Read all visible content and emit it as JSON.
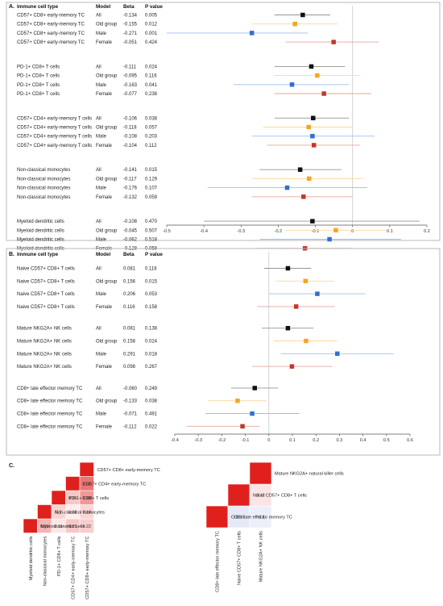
{
  "chart_data": [
    {
      "type": "forest",
      "panel": "A.",
      "headers": [
        "Immune cell type",
        "Model",
        "Beta",
        "P value"
      ],
      "xlim": [
        -0.5,
        0.2
      ],
      "ticks": [
        "-0.5",
        "-0.4",
        "-0.3",
        "-0.2",
        "-0.1",
        "0",
        "0.1",
        "0.2"
      ],
      "model_colors": {
        "All": "#111111",
        "Old group": "#f5a623",
        "Male": "#2f6fd6",
        "Female": "#c0392b"
      },
      "groups": [
        {
          "rows": [
            {
              "cell": "CD57+ CD8+ early-memory TC",
              "model": "All",
              "beta": "-0.134",
              "p": "0.005",
              "est": -0.134,
              "lo": -0.21,
              "hi": -0.06
            },
            {
              "cell": "CD57+ CD8+ early-memory TC",
              "model": "Old group",
              "beta": "-0.155",
              "p": "0.012",
              "est": -0.155,
              "lo": -0.27,
              "hi": -0.04
            },
            {
              "cell": "CD57+ CD8+ early-memory TC",
              "model": "Male",
              "beta": "-0.271",
              "p": "0.001",
              "est": -0.271,
              "lo": -0.5,
              "hi": -0.12
            },
            {
              "cell": "CD57+ CD8+ early-memory TC",
              "model": "Female",
              "beta": "-0.051",
              "p": "0.424",
              "est": -0.051,
              "lo": -0.18,
              "hi": 0.07
            }
          ]
        },
        {
          "rows": [
            {
              "cell": "PD-1+ CD8+ T cells",
              "model": "All",
              "beta": "-0.111",
              "p": "0.024",
              "est": -0.111,
              "lo": -0.21,
              "hi": -0.02
            },
            {
              "cell": "PD-1+ CD8+ T cells",
              "model": "Old group",
              "beta": "-0.095",
              "p": "0.116",
              "est": -0.095,
              "lo": -0.21,
              "hi": 0.02
            },
            {
              "cell": "PD-1+ CD8+ T cells",
              "model": "Male",
              "beta": "-0.163",
              "p": "0.041",
              "est": -0.163,
              "lo": -0.32,
              "hi": -0.01
            },
            {
              "cell": "PD-1+ CD8+ T cells",
              "model": "Female",
              "beta": "-0.077",
              "p": "0.238",
              "est": -0.077,
              "lo": -0.21,
              "hi": 0.05
            }
          ]
        },
        {
          "rows": [
            {
              "cell": "CD57+ CD4+ early-memory T cells",
              "model": "All",
              "beta": "-0.106",
              "p": "0.038",
              "est": -0.106,
              "lo": -0.21,
              "hi": -0.01
            },
            {
              "cell": "CD57+ CD4+ early-memory T cells",
              "model": "Old group",
              "beta": "-0.118",
              "p": "0.057",
              "est": -0.118,
              "lo": -0.24,
              "hi": 0.0
            },
            {
              "cell": "CD57+ CD4+ early-memory T cells",
              "model": "Male",
              "beta": "-0.108",
              "p": "0.203",
              "est": -0.108,
              "lo": -0.27,
              "hi": 0.06
            },
            {
              "cell": "CD57+ CD4+ early-memory T cells",
              "model": "Female",
              "beta": "-0.104",
              "p": "0.112",
              "est": -0.104,
              "lo": -0.23,
              "hi": 0.02
            }
          ]
        },
        {
          "rows": [
            {
              "cell": "Non-classical monocytes",
              "model": "All",
              "beta": "-0.141",
              "p": "0.015",
              "est": -0.141,
              "lo": -0.25,
              "hi": -0.03
            },
            {
              "cell": "Non-classical monocytes",
              "model": "Old group",
              "beta": "-0.117",
              "p": "0.129",
              "est": -0.117,
              "lo": -0.27,
              "hi": 0.03
            },
            {
              "cell": "Non-classical monocytes",
              "model": "Male",
              "beta": "-0.176",
              "p": "0.107",
              "est": -0.176,
              "lo": -0.39,
              "hi": 0.04
            },
            {
              "cell": "Non-classical monocytes",
              "model": "Female",
              "beta": "-0.132",
              "p": "0.059",
              "est": -0.132,
              "lo": -0.27,
              "hi": 0.0
            }
          ]
        },
        {
          "rows": [
            {
              "cell": "Myeloid dendritic cells",
              "model": "All",
              "beta": "-0.108",
              "p": "0.470",
              "est": -0.108,
              "lo": -0.4,
              "hi": 0.18
            },
            {
              "cell": "Myeloid dendritic cells",
              "model": "Old group",
              "beta": "-0.045",
              "p": "0.507",
              "est": -0.045,
              "lo": -0.18,
              "hi": 0.09
            },
            {
              "cell": "Myeloid dendritic cells",
              "model": "Male",
              "beta": "-0.062",
              "p": "0.518",
              "est": -0.062,
              "lo": -0.25,
              "hi": 0.13
            },
            {
              "cell": "Myeloid dendritic cells",
              "model": "Female",
              "beta": "-0.128",
              "p": "0.058",
              "est": -0.128,
              "lo": -0.26,
              "hi": 0.0
            }
          ]
        }
      ]
    },
    {
      "type": "forest",
      "panel": "B.",
      "headers": [
        "Immune cell type",
        "Model",
        "Beta",
        "P value"
      ],
      "xlim": [
        -0.4,
        0.6
      ],
      "ticks": [
        "-0.4",
        "-0.3",
        "-0.2",
        "-0.1",
        "0",
        "0.1",
        "0.2",
        "0.3",
        "0.4",
        "0.5",
        "0.6"
      ],
      "model_colors": {
        "All": "#111111",
        "Old group": "#f5a623",
        "Male": "#2f6fd6",
        "Female": "#c0392b"
      },
      "groups": [
        {
          "rows": [
            {
              "cell": "Naive CD57+ CD8+ T cells",
              "model": "All",
              "beta": "0.081",
              "p": "0.118",
              "est": 0.081,
              "lo": -0.02,
              "hi": 0.18
            },
            {
              "cell": "Naive CD57+ CD8+ T cells",
              "model": "Old group",
              "beta": "0.156",
              "p": "0.015",
              "est": 0.156,
              "lo": 0.03,
              "hi": 0.28
            },
            {
              "cell": "Naive CD57+ CD8+ T cells",
              "model": "Male",
              "beta": "0.206",
              "p": "0.053",
              "est": 0.206,
              "lo": 0.0,
              "hi": 0.41
            },
            {
              "cell": "Naive CD57+ CD8+ T cells",
              "model": "Female",
              "beta": "0.116",
              "p": "0.158",
              "est": 0.116,
              "lo": -0.05,
              "hi": 0.28
            }
          ]
        },
        {
          "rows": [
            {
              "cell": "Mature NKG2A+ NK cells",
              "model": "All",
              "beta": "0.081",
              "p": "0.138",
              "est": 0.081,
              "lo": -0.03,
              "hi": 0.19
            },
            {
              "cell": "Mature NKG2A+ NK cells",
              "model": "Old group",
              "beta": "0.158",
              "p": "0.024",
              "est": 0.158,
              "lo": 0.02,
              "hi": 0.29
            },
            {
              "cell": "Mature NKG2A+ NK cells",
              "model": "Male",
              "beta": "0.291",
              "p": "0.018",
              "est": 0.291,
              "lo": 0.05,
              "hi": 0.53
            },
            {
              "cell": "Mature NKG2A+ NK cells",
              "model": "Female",
              "beta": "0.098",
              "p": "0.267",
              "est": 0.098,
              "lo": -0.07,
              "hi": 0.27
            }
          ]
        },
        {
          "rows": [
            {
              "cell": "CD8+ late effector memory TC",
              "model": "All",
              "beta": "-0.060",
              "p": "0.249",
              "est": -0.06,
              "lo": -0.16,
              "hi": 0.04
            },
            {
              "cell": "CD8+ late effector memory TC",
              "model": "Old group",
              "beta": "-0.133",
              "p": "0.038",
              "est": -0.133,
              "lo": -0.26,
              "hi": -0.01
            },
            {
              "cell": "CD8+ late effector memory TC",
              "model": "Male",
              "beta": "-0.071",
              "p": "0.491",
              "est": -0.071,
              "lo": -0.27,
              "hi": 0.13
            },
            {
              "cell": "CD8+ late effector memory TC",
              "model": "Female",
              "beta": "-0.112",
              "p": "0.022",
              "est": -0.112,
              "lo": -0.35,
              "hi": -0.04
            }
          ]
        }
      ]
    },
    {
      "type": "heatmap",
      "panel": "C.",
      "labels": [
        "Myeloid dendritic cells",
        "Non-classical monocytes",
        "PD-1+ CD8+ T cells",
        "CD57+ CD4+ early-memory TC",
        "CD57+ CD8+ early-memory TC"
      ],
      "cells": [
        {
          "r": 0,
          "c": 0,
          "v": 1,
          "text": ""
        },
        {
          "r": 0,
          "c": 1,
          "v": 0.33,
          "text": "0.33"
        },
        {
          "r": 0,
          "c": 2,
          "v": 0.11,
          "text": "0.11"
        },
        {
          "r": 0,
          "c": 3,
          "v": 0.25,
          "text": "0.25"
        },
        {
          "r": 0,
          "c": 4,
          "v": 0.22,
          "text": "0.22"
        },
        {
          "r": 1,
          "c": 1,
          "v": 1,
          "text": ""
        },
        {
          "r": 1,
          "c": 2,
          "v": 0.2,
          "text": "0.2"
        },
        {
          "r": 1,
          "c": 3,
          "v": 0.08,
          "text": "0.08"
        },
        {
          "r": 1,
          "c": 4,
          "v": 0.18,
          "text": "0.18"
        },
        {
          "r": 2,
          "c": 2,
          "v": 1,
          "text": ""
        },
        {
          "r": 2,
          "c": 3,
          "v": 0.25,
          "text": "0.25"
        },
        {
          "r": 2,
          "c": 4,
          "v": 0.46,
          "text": "0.46"
        },
        {
          "r": 3,
          "c": 3,
          "v": 1,
          "text": ""
        },
        {
          "r": 3,
          "c": 4,
          "v": 0.62,
          "text": "0.62"
        },
        {
          "r": 4,
          "c": 4,
          "v": 1,
          "text": ""
        }
      ]
    },
    {
      "type": "heatmap",
      "panel": "",
      "labels": [
        "CD8+ late effector memory TC",
        "Naive CD57+ CD8+ T cells",
        "Mature NKG2A+ NK cells"
      ],
      "row_labels": [
        "CD8+ late effector memory TC",
        "Naive CD57+ CD8+ T cells",
        "Mature NKG2A+ natural killer cells"
      ],
      "cells": [
        {
          "r": 0,
          "c": 0,
          "v": 1,
          "text": ""
        },
        {
          "r": 0,
          "c": 1,
          "v": -0.13,
          "text": "−0.13"
        },
        {
          "r": 0,
          "c": 2,
          "v": -0.1,
          "text": "−0.1"
        },
        {
          "r": 1,
          "c": 1,
          "v": 1,
          "text": ""
        },
        {
          "r": 1,
          "c": 2,
          "v": 0.12,
          "text": "0.12"
        },
        {
          "r": 2,
          "c": 2,
          "v": 1,
          "text": ""
        }
      ]
    }
  ]
}
